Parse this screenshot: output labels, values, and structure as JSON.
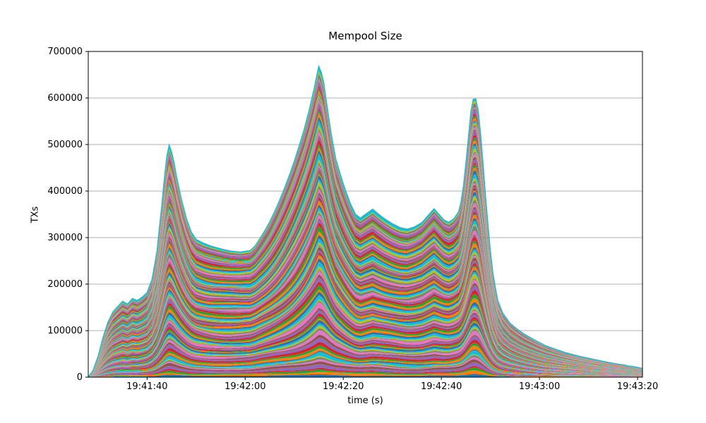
{
  "chart_data": {
    "type": "area",
    "stacked": true,
    "title": "Mempool Size",
    "xlabel": "time (s)",
    "ylabel": "TXs",
    "ylim": [
      0,
      700000
    ],
    "y_ticks": [
      0,
      100000,
      200000,
      300000,
      400000,
      500000,
      600000,
      700000
    ],
    "y_tick_labels": [
      "0",
      "100000",
      "200000",
      "300000",
      "400000",
      "500000",
      "600000",
      "700000"
    ],
    "x_tick_labels": [
      "19:41:40",
      "19:42:00",
      "19:42:20",
      "19:42:40",
      "19:43:00",
      "19:43:20"
    ],
    "x_tick_seconds": [
      12,
      32,
      52,
      72,
      92,
      112
    ],
    "x_range_seconds": [
      0,
      113
    ],
    "grid": "horizontal",
    "grid_color": "#b0b0b0",
    "legend": "none",
    "num_stacked_series": 110,
    "palette": [
      "#1f77b4",
      "#ff7f0e",
      "#2ca02c",
      "#d62728",
      "#9467bd",
      "#8c564b",
      "#e377c2",
      "#7f7f7f",
      "#bcbd22",
      "#17becf"
    ],
    "top_edge_color": "#17becf",
    "total_envelope": {
      "description": "Total stacked mempool size (TXs) vs seconds; t=0 corresponds to ~19:41:28 based on axis ticks. Many thin unlabeled per-source series are stacked; only the summed envelope is readable.",
      "t_seconds": [
        0,
        1,
        2,
        3,
        4,
        5,
        6,
        7,
        8,
        9,
        10,
        11,
        12,
        13,
        14,
        15,
        15.8,
        16.4,
        17.2,
        18,
        19,
        20,
        21,
        22,
        23.5,
        25,
        27,
        29,
        31,
        33,
        34,
        35,
        36,
        37,
        38,
        39,
        40,
        41,
        42,
        43,
        44,
        45,
        46,
        47,
        47.8,
        48.6,
        49.5,
        50.5,
        51.5,
        52.5,
        53.5,
        54.5,
        55.5,
        56.5,
        58,
        59,
        60.5,
        62,
        63.5,
        65,
        66.5,
        68,
        69.5,
        70.5,
        71.5,
        72.5,
        73.5,
        74.5,
        75.5,
        76.3,
        77.2,
        78,
        78.7,
        79.4,
        80.2,
        81,
        81.8,
        82.6,
        83.5,
        84.5,
        86,
        87.5,
        89,
        91,
        93,
        95,
        97,
        99,
        101,
        103,
        105,
        107,
        109,
        111,
        113
      ],
      "txs": [
        0,
        15000,
        45000,
        85000,
        118000,
        140000,
        152000,
        163000,
        157000,
        169000,
        165000,
        172000,
        182000,
        210000,
        270000,
        370000,
        460000,
        502000,
        478000,
        432000,
        382000,
        342000,
        312000,
        296000,
        288000,
        282000,
        276000,
        271000,
        269000,
        272000,
        282000,
        298000,
        315000,
        334000,
        356000,
        380000,
        406000,
        434000,
        464000,
        497000,
        532000,
        572000,
        618000,
        668000,
        648000,
        590000,
        525000,
        468000,
        432000,
        400000,
        372000,
        350000,
        342000,
        350000,
        361000,
        352000,
        340000,
        330000,
        322000,
        318000,
        323000,
        332000,
        350000,
        362000,
        350000,
        338000,
        333000,
        340000,
        355000,
        390000,
        480000,
        570000,
        608000,
        585000,
        500000,
        390000,
        290000,
        215000,
        165000,
        138000,
        116000,
        103000,
        92000,
        80000,
        69000,
        61000,
        54000,
        48000,
        43000,
        38500,
        34000,
        30000,
        26500,
        23000,
        19000
      ]
    }
  }
}
